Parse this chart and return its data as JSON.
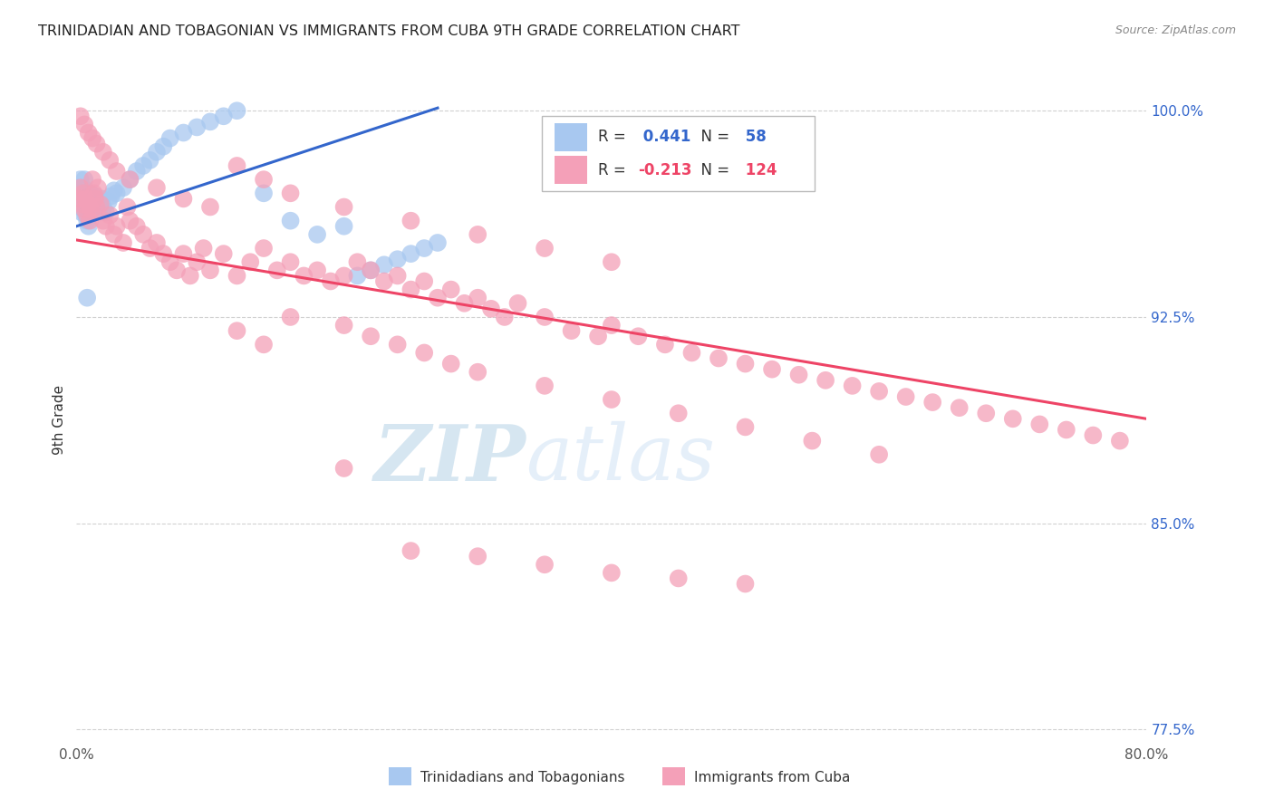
{
  "title": "TRINIDADIAN AND TOBAGONIAN VS IMMIGRANTS FROM CUBA 9TH GRADE CORRELATION CHART",
  "source": "Source: ZipAtlas.com",
  "ylabel": "9th Grade",
  "ytick_labels": [
    "100.0%",
    "92.5%",
    "85.0%",
    "77.5%"
  ],
  "ytick_values": [
    1.0,
    0.925,
    0.85,
    0.775
  ],
  "blue_R": 0.441,
  "blue_N": 58,
  "pink_R": -0.213,
  "pink_N": 124,
  "legend_label_blue": "Trinidadians and Tobagonians",
  "legend_label_pink": "Immigrants from Cuba",
  "blue_color": "#A8C8F0",
  "pink_color": "#F4A0B8",
  "blue_line_color": "#3366CC",
  "pink_line_color": "#EE4466",
  "background_color": "#FFFFFF",
  "grid_color": "#CCCCCC",
  "title_color": "#222222",
  "axis_label_color": "#333333",
  "right_tick_color": "#3366CC",
  "blue_scatter_x": [
    0.001,
    0.002,
    0.003,
    0.003,
    0.004,
    0.004,
    0.005,
    0.005,
    0.006,
    0.006,
    0.007,
    0.007,
    0.008,
    0.008,
    0.009,
    0.009,
    0.01,
    0.01,
    0.011,
    0.012,
    0.013,
    0.014,
    0.015,
    0.016,
    0.017,
    0.018,
    0.019,
    0.02,
    0.022,
    0.024,
    0.026,
    0.028,
    0.03,
    0.035,
    0.04,
    0.045,
    0.05,
    0.055,
    0.06,
    0.065,
    0.07,
    0.08,
    0.09,
    0.1,
    0.11,
    0.12,
    0.14,
    0.16,
    0.18,
    0.2,
    0.21,
    0.22,
    0.23,
    0.24,
    0.25,
    0.26,
    0.27,
    0.008
  ],
  "blue_scatter_y": [
    0.972,
    0.968,
    0.965,
    0.975,
    0.963,
    0.97,
    0.966,
    0.972,
    0.969,
    0.975,
    0.962,
    0.968,
    0.96,
    0.966,
    0.958,
    0.964,
    0.962,
    0.97,
    0.963,
    0.965,
    0.967,
    0.969,
    0.968,
    0.966,
    0.964,
    0.966,
    0.968,
    0.965,
    0.963,
    0.967,
    0.969,
    0.971,
    0.97,
    0.972,
    0.975,
    0.978,
    0.98,
    0.982,
    0.985,
    0.987,
    0.99,
    0.992,
    0.994,
    0.996,
    0.998,
    1.0,
    0.97,
    0.96,
    0.955,
    0.958,
    0.94,
    0.942,
    0.944,
    0.946,
    0.948,
    0.95,
    0.952,
    0.932
  ],
  "pink_scatter_x": [
    0.002,
    0.003,
    0.004,
    0.005,
    0.006,
    0.007,
    0.008,
    0.009,
    0.01,
    0.011,
    0.012,
    0.013,
    0.014,
    0.015,
    0.016,
    0.018,
    0.02,
    0.022,
    0.025,
    0.028,
    0.03,
    0.035,
    0.038,
    0.04,
    0.045,
    0.05,
    0.055,
    0.06,
    0.065,
    0.07,
    0.075,
    0.08,
    0.085,
    0.09,
    0.095,
    0.1,
    0.11,
    0.12,
    0.13,
    0.14,
    0.15,
    0.16,
    0.17,
    0.18,
    0.19,
    0.2,
    0.21,
    0.22,
    0.23,
    0.24,
    0.25,
    0.26,
    0.27,
    0.28,
    0.29,
    0.3,
    0.31,
    0.32,
    0.33,
    0.35,
    0.37,
    0.39,
    0.4,
    0.42,
    0.44,
    0.46,
    0.48,
    0.5,
    0.52,
    0.54,
    0.56,
    0.58,
    0.6,
    0.62,
    0.64,
    0.66,
    0.68,
    0.7,
    0.72,
    0.74,
    0.76,
    0.78,
    0.003,
    0.006,
    0.009,
    0.012,
    0.015,
    0.02,
    0.025,
    0.03,
    0.04,
    0.06,
    0.08,
    0.1,
    0.12,
    0.14,
    0.16,
    0.2,
    0.25,
    0.3,
    0.35,
    0.4,
    0.12,
    0.14,
    0.16,
    0.2,
    0.22,
    0.24,
    0.26,
    0.28,
    0.3,
    0.35,
    0.4,
    0.45,
    0.5,
    0.55,
    0.6,
    0.2,
    0.25,
    0.3,
    0.35,
    0.4,
    0.45,
    0.5
  ],
  "pink_scatter_y": [
    0.968,
    0.972,
    0.966,
    0.97,
    0.964,
    0.968,
    0.962,
    0.966,
    0.96,
    0.964,
    0.975,
    0.97,
    0.968,
    0.965,
    0.972,
    0.966,
    0.96,
    0.958,
    0.962,
    0.955,
    0.958,
    0.952,
    0.965,
    0.96,
    0.958,
    0.955,
    0.95,
    0.952,
    0.948,
    0.945,
    0.942,
    0.948,
    0.94,
    0.945,
    0.95,
    0.942,
    0.948,
    0.94,
    0.945,
    0.95,
    0.942,
    0.945,
    0.94,
    0.942,
    0.938,
    0.94,
    0.945,
    0.942,
    0.938,
    0.94,
    0.935,
    0.938,
    0.932,
    0.935,
    0.93,
    0.932,
    0.928,
    0.925,
    0.93,
    0.925,
    0.92,
    0.918,
    0.922,
    0.918,
    0.915,
    0.912,
    0.91,
    0.908,
    0.906,
    0.904,
    0.902,
    0.9,
    0.898,
    0.896,
    0.894,
    0.892,
    0.89,
    0.888,
    0.886,
    0.884,
    0.882,
    0.88,
    0.998,
    0.995,
    0.992,
    0.99,
    0.988,
    0.985,
    0.982,
    0.978,
    0.975,
    0.972,
    0.968,
    0.965,
    0.98,
    0.975,
    0.97,
    0.965,
    0.96,
    0.955,
    0.95,
    0.945,
    0.92,
    0.915,
    0.925,
    0.922,
    0.918,
    0.915,
    0.912,
    0.908,
    0.905,
    0.9,
    0.895,
    0.89,
    0.885,
    0.88,
    0.875,
    0.87,
    0.84,
    0.838,
    0.835,
    0.832,
    0.83,
    0.828
  ],
  "xlim": [
    0.0,
    0.8
  ],
  "ylim": [
    0.77,
    1.005
  ],
  "blue_line_x": [
    0.0,
    0.27
  ],
  "blue_line_y": [
    0.958,
    1.001
  ],
  "pink_line_x": [
    0.0,
    0.8
  ],
  "pink_line_y": [
    0.953,
    0.888
  ]
}
